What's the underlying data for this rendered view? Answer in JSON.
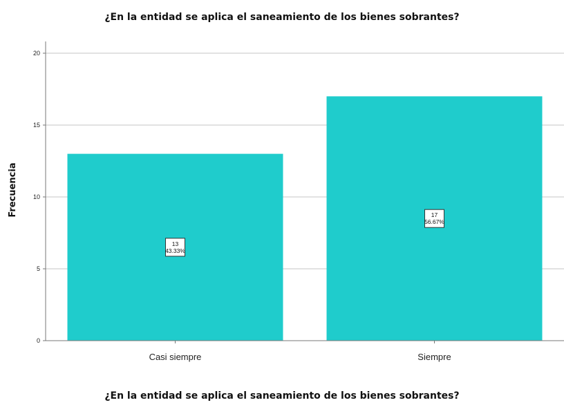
{
  "chart_data": {
    "type": "bar",
    "title": "¿En la entidad se aplica el saneamiento de los bienes sobrantes?",
    "xlabel": "¿En la entidad se aplica el saneamiento de los bienes sobrantes?",
    "ylabel": "Frecuencia",
    "categories": [
      "Casi siempre",
      "Siempre"
    ],
    "values": [
      13,
      17
    ],
    "data_labels": [
      {
        "count": "13",
        "percent": "43.33%"
      },
      {
        "count": "17",
        "percent": "56.67%"
      }
    ],
    "ylim": [
      0,
      20
    ],
    "yticks": [
      0,
      5,
      10,
      15,
      20
    ],
    "grid": true,
    "legend": "none",
    "colors": {
      "bar": "#1fcccc",
      "grid": "#d9d9d9",
      "axis": "#777777",
      "text": "#222222"
    }
  }
}
